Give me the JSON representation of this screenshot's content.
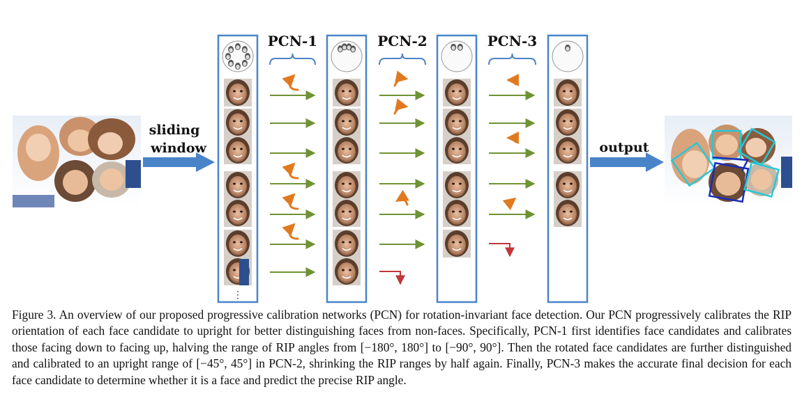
{
  "figure": {
    "stage_labels": [
      "PCN-1",
      "PCN-2",
      "PCN-3"
    ],
    "sliding_label_line1": "sliding",
    "sliding_label_line2": "window",
    "output_label": "output",
    "ellipsis": "⋮",
    "colors": {
      "column_border": "#4a84c8",
      "brace": "#4a84c8",
      "green_arrow": "#6f9234",
      "red_arrow": "#c0363a",
      "orange_arrow": "#e07a20",
      "big_arrow": "#4a84c8",
      "box_cyan": "#25c8d8",
      "box_navy": "#1a2bb8"
    },
    "icons": [
      "face-thumbnail-icon",
      "rotation-wheel-icon",
      "rotate-arrow-icon",
      "reject-arrow-icon"
    ]
  },
  "caption": {
    "figure_number": "Figure 3.",
    "text": "An overview of our proposed progressive calibration networks (PCN) for rotation-invariant face detection. Our PCN progressively calibrates the RIP orientation of each face candidate to upright for better distinguishing faces from non-faces. Specifically, PCN-1 first identifies face candidates and calibrates those facing down to facing up, halving the range of RIP angles from [−180°, 180°] to [−90°, 90°]. Then the rotated face candidates are further distinguished and calibrated to an upright range of [−45°, 45°] in PCN-2, shrinking the RIP ranges by half again. Finally, PCN-3 makes the accurate final decision for each face candidate to determine whether it is a face and predict the precise RIP angle."
  }
}
